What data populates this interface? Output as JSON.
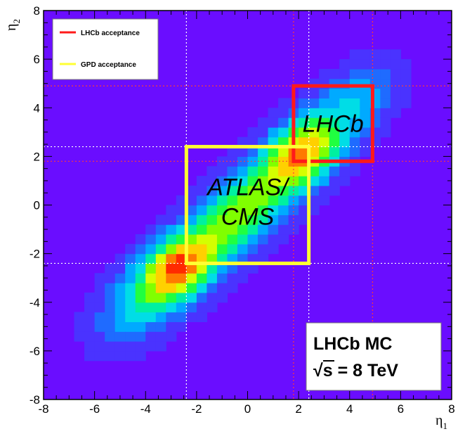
{
  "chart_data": {
    "type": "heatmap",
    "title": "",
    "xlabel": "η",
    "xlabel_sub": "1",
    "ylabel": "η",
    "ylabel_sub": "2",
    "xlim": [
      -8,
      8
    ],
    "ylim": [
      -8,
      8
    ],
    "x_ticks": [
      "-8",
      "-6",
      "-4",
      "-2",
      "0",
      "2",
      "4",
      "6",
      "8"
    ],
    "y_ticks": [
      "-8",
      "-6",
      "-4",
      "-2",
      "0",
      "2",
      "4",
      "6",
      "8"
    ],
    "bin_width": 0.4,
    "background_color": "#6a0dff",
    "colors": [
      "#6a0dff",
      "#4a33ff",
      "#1f6bff",
      "#00aaff",
      "#00dde6",
      "#00f0a0",
      "#20ff40",
      "#80ff00",
      "#d4ff00",
      "#ffd000",
      "#ff7a00",
      "#ff2a00"
    ],
    "density_components": [
      {
        "x": -2.8,
        "y": -2.6,
        "sx": 0.9,
        "sy": 0.9,
        "rho": 0.3,
        "weight": 1.0
      },
      {
        "x": 2.2,
        "y": 2.2,
        "sx": 0.9,
        "sy": 0.9,
        "rho": 0.3,
        "weight": 1.0
      },
      {
        "x": -0.3,
        "y": -0.3,
        "sx": 2.0,
        "sy": 2.0,
        "rho": 0.85,
        "weight": 0.9
      },
      {
        "x": -4.2,
        "y": -4.0,
        "sx": 1.1,
        "sy": 1.1,
        "rho": 0.4,
        "weight": 0.32
      },
      {
        "x": 4.2,
        "y": 4.2,
        "sx": 1.0,
        "sy": 1.0,
        "rho": 0.4,
        "weight": 0.32
      }
    ],
    "acceptance_regions": [
      {
        "name": "LHCb acceptance",
        "label": "LHCb",
        "color": "#ff1a1a",
        "x": [
          1.8,
          4.9
        ],
        "y": [
          1.8,
          4.9
        ]
      },
      {
        "name": "GPD acceptance",
        "label_lines": [
          "ATLAS/",
          "CMS"
        ],
        "color": "#ffff33",
        "x": [
          -2.4,
          2.4
        ],
        "y": [
          -2.4,
          2.4
        ]
      }
    ],
    "legend": {
      "position": "top-left",
      "entries": [
        {
          "label": "LHCb acceptance",
          "color": "#ff1a1a"
        },
        {
          "label": "GPD acceptance",
          "color": "#ffff33"
        }
      ]
    },
    "info_box": {
      "position": "bottom-right",
      "line1": "LHCb MC",
      "line2_prefix": "√s = 8 TeV"
    }
  }
}
